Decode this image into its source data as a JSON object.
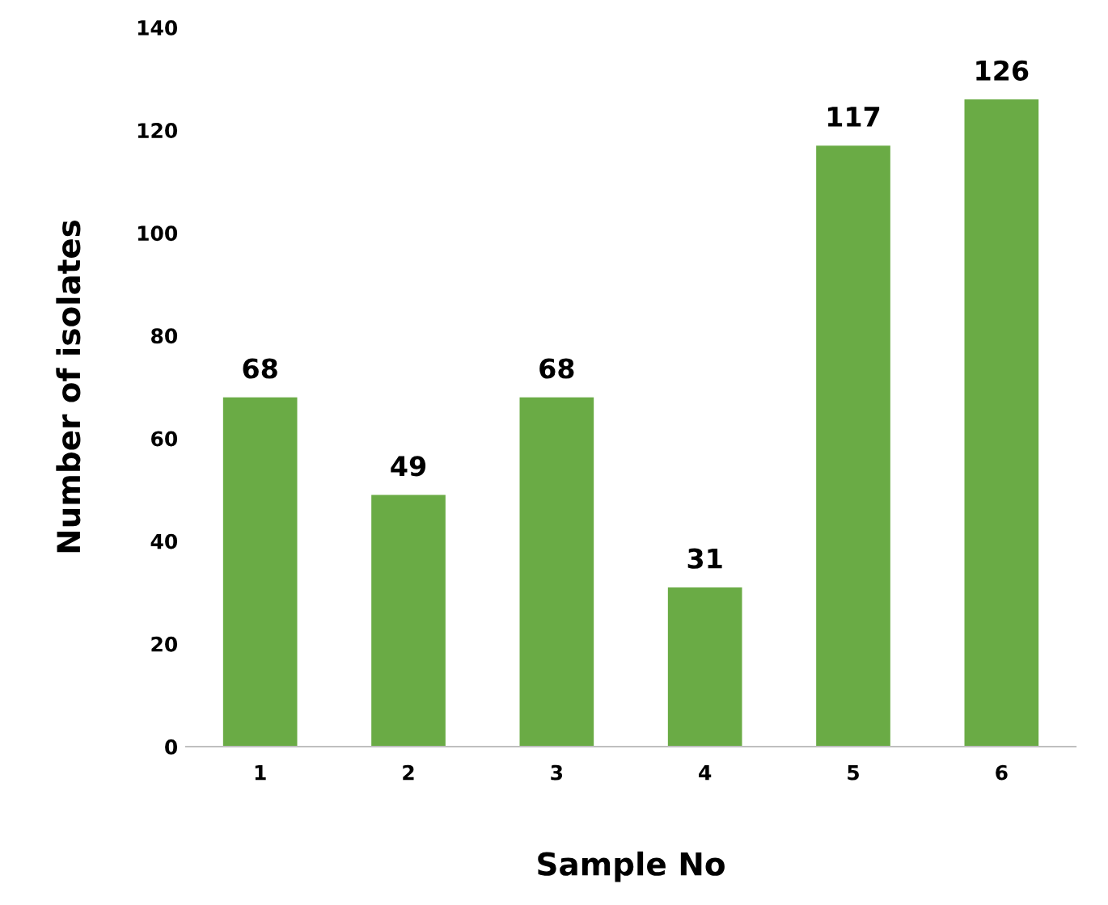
{
  "chart_data": {
    "type": "bar",
    "xlabel": "Sample No",
    "ylabel": "Number of isolates",
    "categories": [
      "1",
      "2",
      "3",
      "4",
      "5",
      "6"
    ],
    "values": [
      68,
      49,
      68,
      31,
      117,
      126
    ],
    "color": "#6aab45",
    "ylim": [
      0,
      140
    ],
    "yticks": [
      0,
      20,
      40,
      60,
      80,
      100,
      120,
      140
    ],
    "data_labels": true,
    "grid": false,
    "legend": false
  }
}
